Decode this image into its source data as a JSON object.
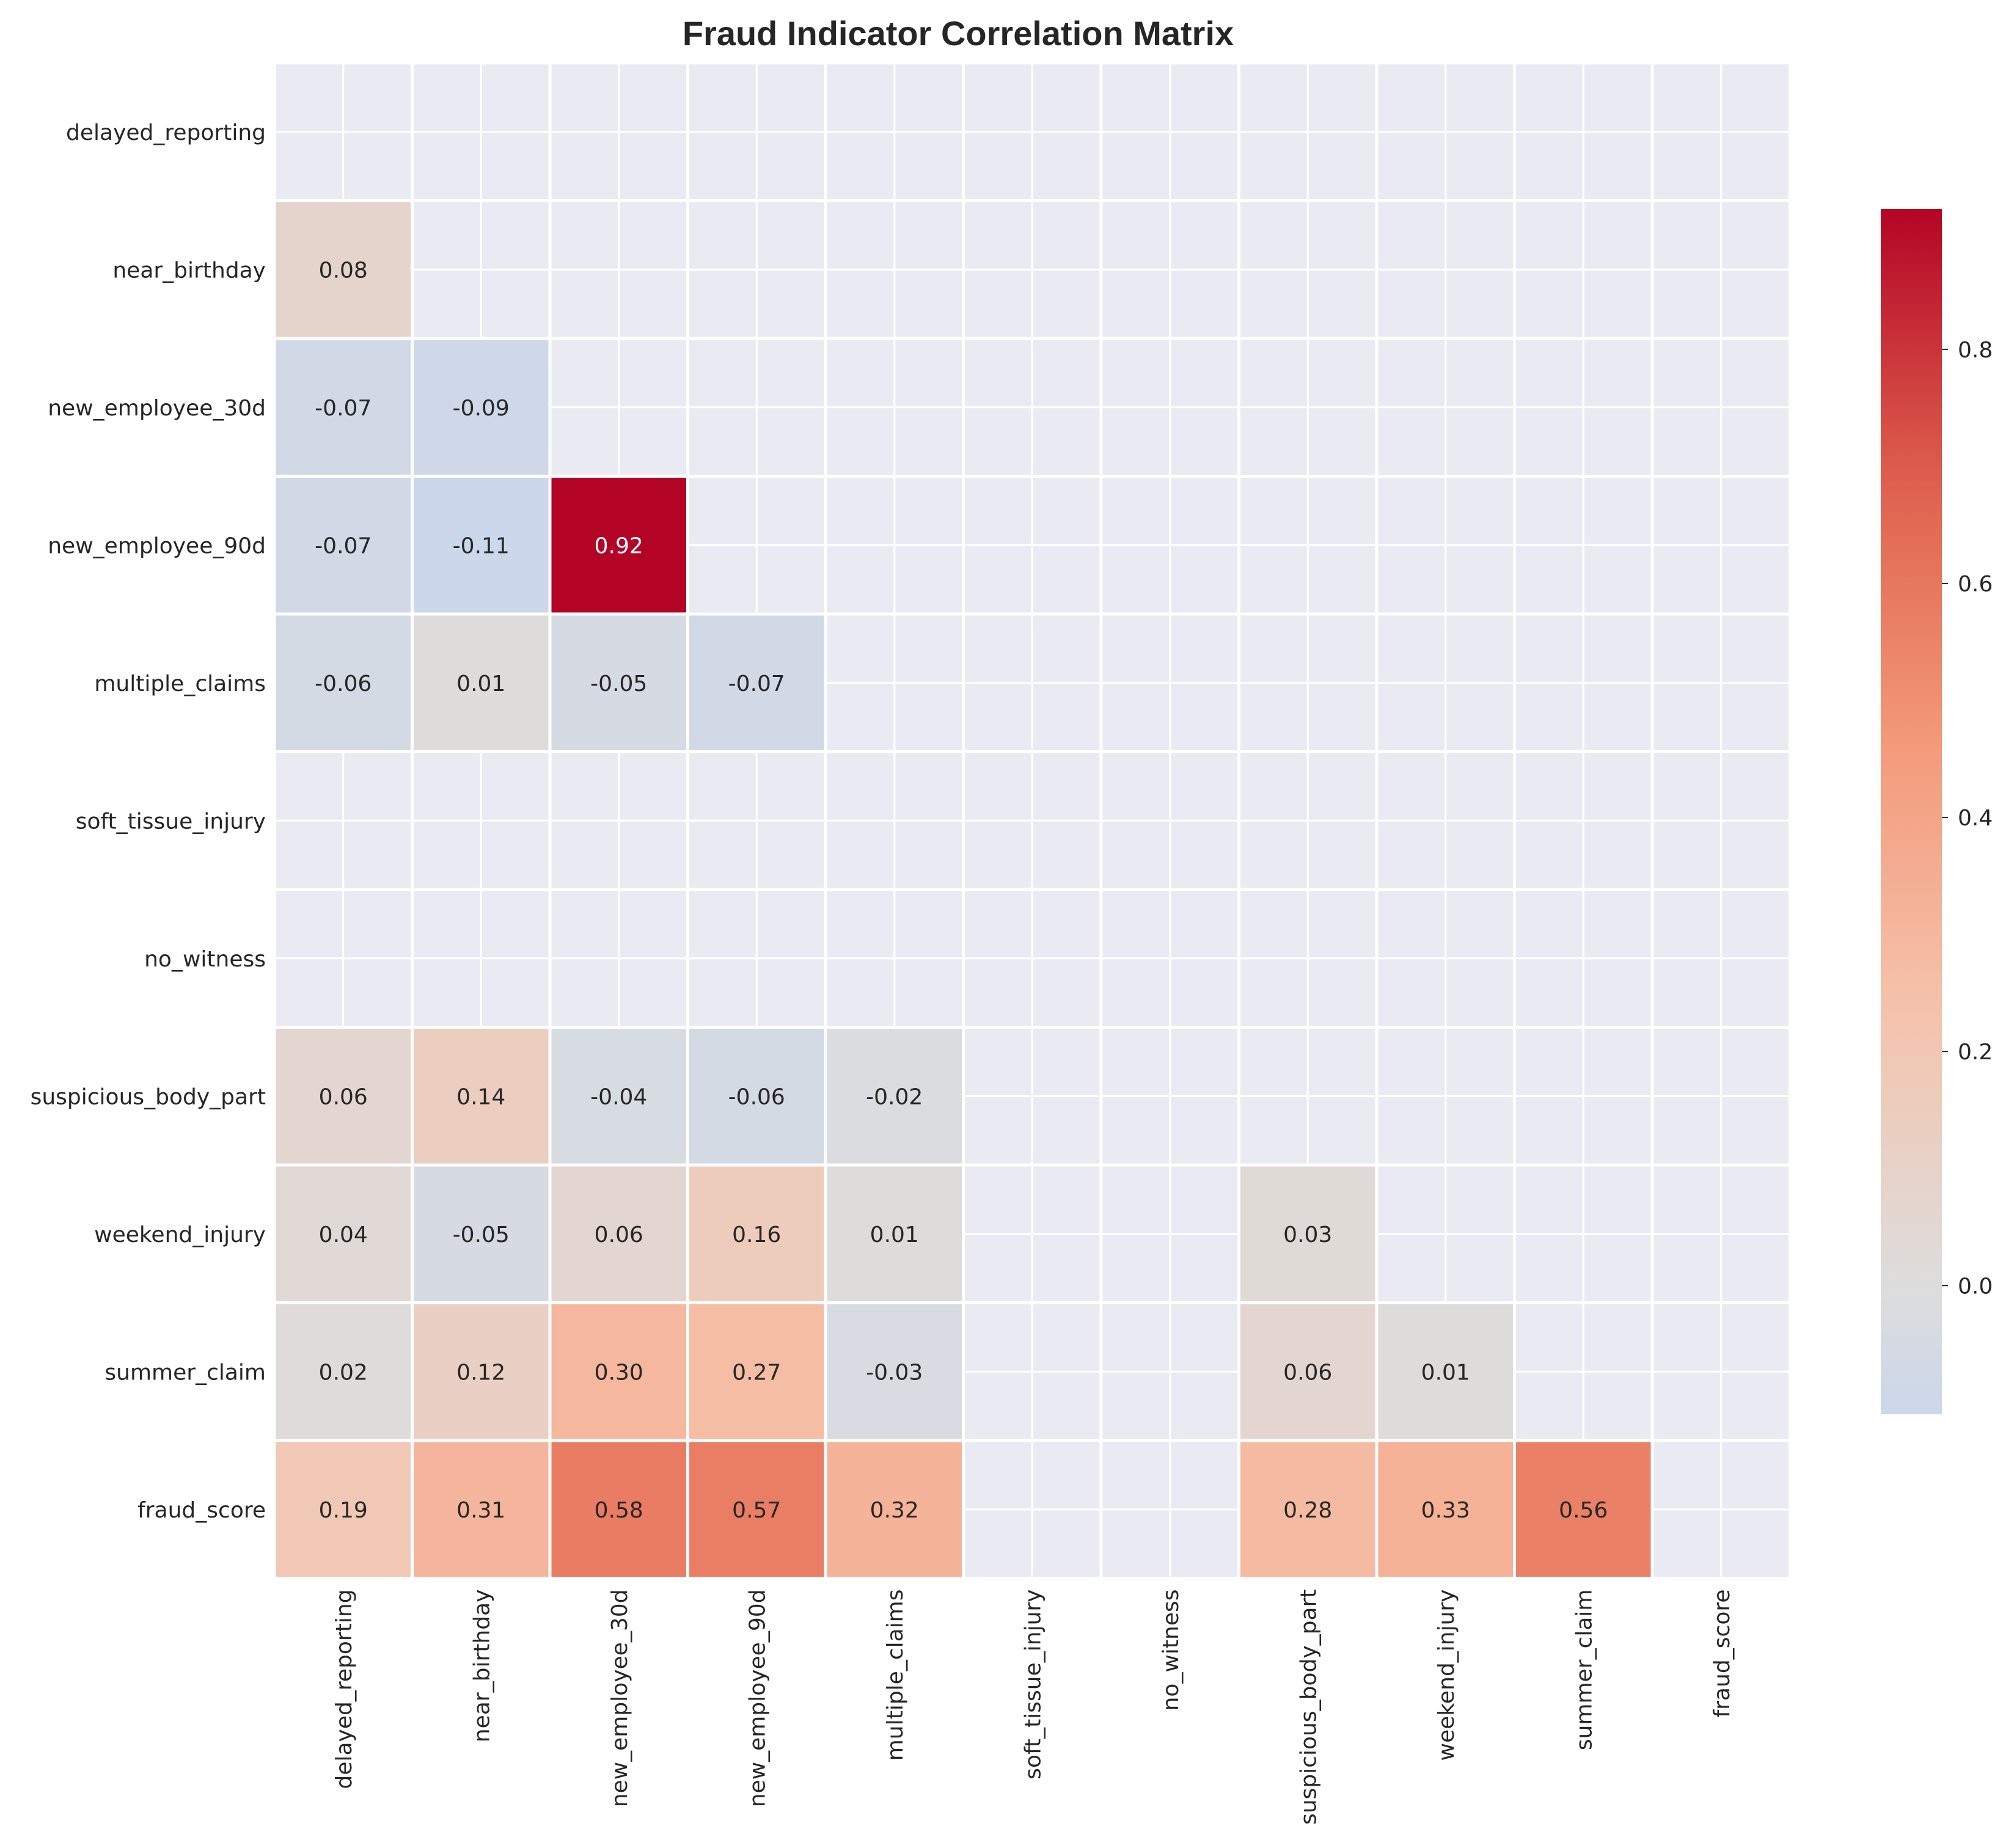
{
  "chart_data": {
    "type": "heatmap",
    "title": "Fraud Indicator Correlation Matrix",
    "labels": [
      "delayed_reporting",
      "near_birthday",
      "new_employee_30d",
      "new_employee_90d",
      "multiple_claims",
      "soft_tissue_injury",
      "no_witness",
      "suspicious_body_part",
      "weekend_injury",
      "summer_claim",
      "fraud_score"
    ],
    "mask": "upper-triangle-and-diagonal",
    "values": [
      [
        null,
        null,
        null,
        null,
        null,
        null,
        null,
        null,
        null,
        null,
        null
      ],
      [
        0.08,
        null,
        null,
        null,
        null,
        null,
        null,
        null,
        null,
        null,
        null
      ],
      [
        -0.07,
        -0.09,
        null,
        null,
        null,
        null,
        null,
        null,
        null,
        null,
        null
      ],
      [
        -0.07,
        -0.11,
        0.92,
        null,
        null,
        null,
        null,
        null,
        null,
        null,
        null
      ],
      [
        -0.06,
        0.01,
        -0.05,
        -0.07,
        null,
        null,
        null,
        null,
        null,
        null,
        null
      ],
      [
        null,
        null,
        null,
        null,
        null,
        null,
        null,
        null,
        null,
        null,
        null
      ],
      [
        null,
        null,
        null,
        null,
        null,
        null,
        null,
        null,
        null,
        null,
        null
      ],
      [
        0.06,
        0.14,
        -0.04,
        -0.06,
        -0.02,
        null,
        null,
        null,
        null,
        null,
        null
      ],
      [
        0.04,
        -0.05,
        0.06,
        0.16,
        0.01,
        null,
        null,
        0.03,
        null,
        null,
        null
      ],
      [
        0.02,
        0.12,
        0.3,
        0.27,
        -0.03,
        null,
        null,
        0.06,
        0.01,
        null,
        null
      ],
      [
        0.19,
        0.31,
        0.58,
        0.57,
        0.32,
        null,
        null,
        0.28,
        0.33,
        0.56,
        null
      ]
    ],
    "value_format": "2 decimals",
    "colormap": "coolwarm",
    "color_range": [
      -0.11,
      0.92
    ],
    "colorbar_ticks": [
      0.0,
      0.2,
      0.4,
      0.6,
      0.8
    ],
    "colorbar_tick_labels": [
      "0.0",
      "0.2",
      "0.4",
      "0.6",
      "0.8"
    ],
    "grid": true,
    "background_color": "#eaeaf2",
    "grid_color": "#ffffff"
  }
}
